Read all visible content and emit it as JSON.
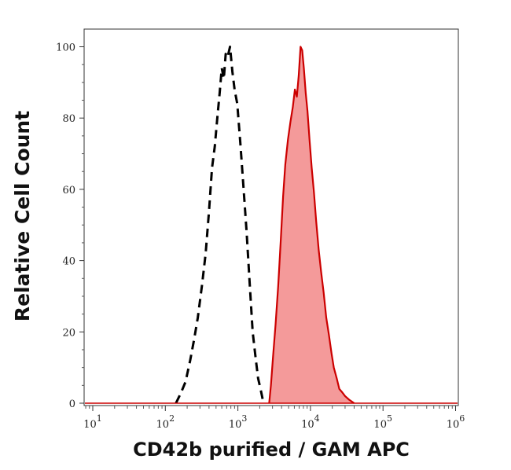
{
  "chart_data": {
    "type": "area",
    "xlabel": "CD42b purified / GAM APC",
    "ylabel": "Relative Cell Count",
    "x_scale": "log",
    "xlim": [
      10,
      1000000
    ],
    "ylim": [
      0,
      100
    ],
    "x_ticks": [
      {
        "value": 10,
        "base": "10",
        "exp": "1"
      },
      {
        "value": 100,
        "base": "10",
        "exp": "2"
      },
      {
        "value": 1000,
        "base": "10",
        "exp": "3"
      },
      {
        "value": 10000,
        "base": "10",
        "exp": "4"
      },
      {
        "value": 100000,
        "base": "10",
        "exp": "5"
      },
      {
        "value": 1000000,
        "base": "10",
        "exp": "6"
      }
    ],
    "y_ticks": [
      "0",
      "20",
      "40",
      "60",
      "80",
      "100"
    ],
    "grid": false,
    "legend": "none",
    "series": [
      {
        "style": "dashed",
        "color": "#000000",
        "fill": "none",
        "points": [
          [
            140,
            0
          ],
          [
            165,
            3
          ],
          [
            190,
            6
          ],
          [
            220,
            12
          ],
          [
            250,
            18
          ],
          [
            280,
            24
          ],
          [
            320,
            33
          ],
          [
            360,
            42
          ],
          [
            400,
            54
          ],
          [
            440,
            66
          ],
          [
            480,
            72
          ],
          [
            520,
            80
          ],
          [
            560,
            87
          ],
          [
            600,
            94
          ],
          [
            640,
            91
          ],
          [
            680,
            98
          ],
          [
            720,
            97
          ],
          [
            780,
            100
          ],
          [
            840,
            93
          ],
          [
            900,
            88
          ],
          [
            980,
            84
          ],
          [
            1080,
            73
          ],
          [
            1200,
            60
          ],
          [
            1320,
            48
          ],
          [
            1450,
            34
          ],
          [
            1600,
            20
          ],
          [
            1750,
            13
          ],
          [
            1900,
            7
          ],
          [
            2050,
            4
          ],
          [
            2150,
            2
          ],
          [
            2250,
            0
          ]
        ]
      },
      {
        "style": "solid",
        "color": "#cc0000",
        "fill": "#f49a9a",
        "points": [
          [
            2700,
            0
          ],
          [
            2850,
            5
          ],
          [
            3050,
            13
          ],
          [
            3300,
            22
          ],
          [
            3600,
            33
          ],
          [
            3900,
            46
          ],
          [
            4200,
            58
          ],
          [
            4500,
            67
          ],
          [
            4900,
            74
          ],
          [
            5300,
            79
          ],
          [
            5700,
            83
          ],
          [
            6100,
            88
          ],
          [
            6500,
            86
          ],
          [
            6900,
            92
          ],
          [
            7300,
            100
          ],
          [
            7700,
            99
          ],
          [
            8100,
            94
          ],
          [
            8600,
            87
          ],
          [
            9100,
            82
          ],
          [
            9700,
            74
          ],
          [
            10400,
            66
          ],
          [
            11200,
            59
          ],
          [
            12000,
            51
          ],
          [
            13000,
            43
          ],
          [
            14000,
            37
          ],
          [
            15200,
            31
          ],
          [
            16500,
            24
          ],
          [
            18000,
            19
          ],
          [
            19500,
            14
          ],
          [
            21000,
            10
          ],
          [
            23000,
            7
          ],
          [
            25000,
            4
          ],
          [
            27500,
            3
          ],
          [
            30000,
            2
          ],
          [
            34000,
            1
          ],
          [
            40000,
            0
          ]
        ]
      }
    ]
  }
}
